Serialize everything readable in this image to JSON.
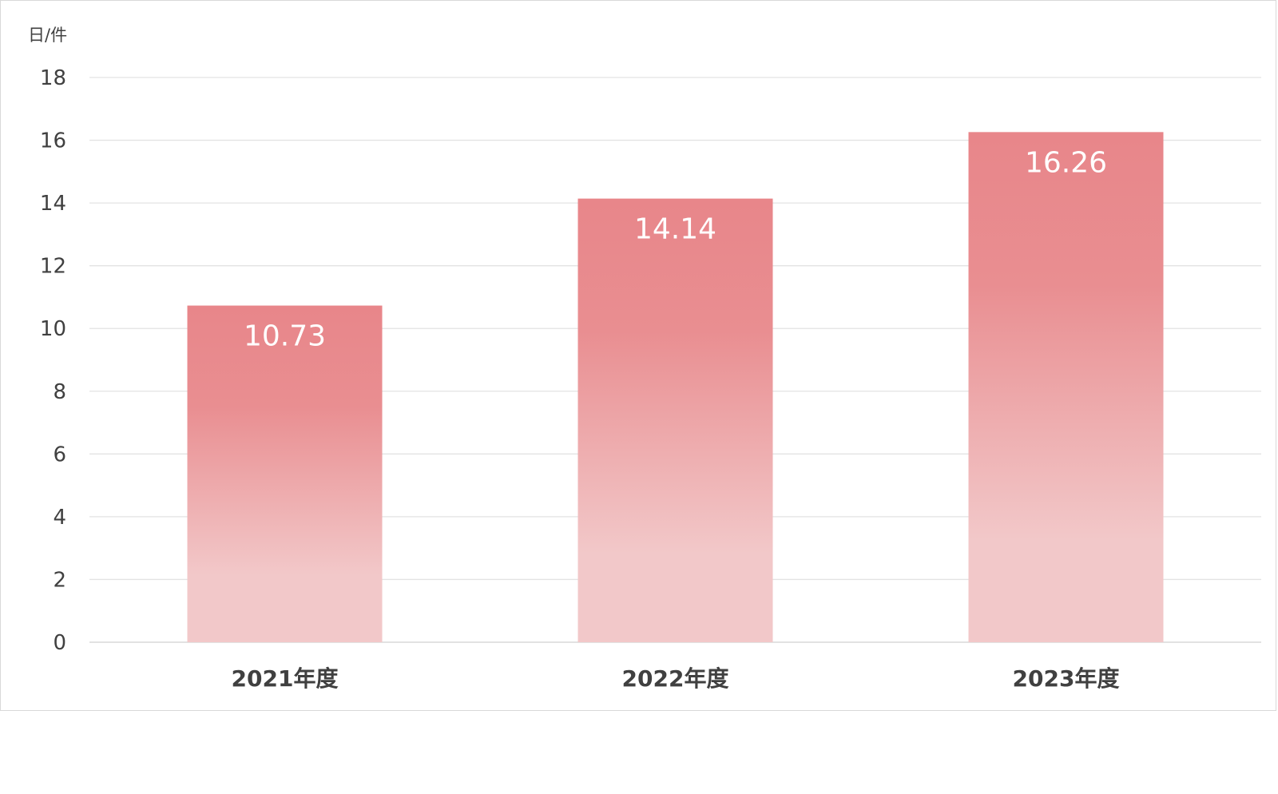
{
  "chart_data": {
    "type": "bar",
    "unit_label": "日/件",
    "categories": [
      "2021年度",
      "2022年度",
      "2023年度"
    ],
    "values": [
      10.73,
      14.14,
      16.26
    ],
    "data_labels": [
      "10.73",
      "14.14",
      "16.26"
    ],
    "ylim": [
      0,
      18
    ],
    "y_ticks": [
      0,
      2,
      4,
      6,
      8,
      10,
      12,
      14,
      16,
      18
    ],
    "grid": true,
    "legend": "none",
    "colors": {
      "bar_top": "#e8868a",
      "bar_bottom": "#f2c8c9",
      "data_label": "#ffffff",
      "gridline": "#e3e3e3",
      "text": "#404040"
    }
  }
}
